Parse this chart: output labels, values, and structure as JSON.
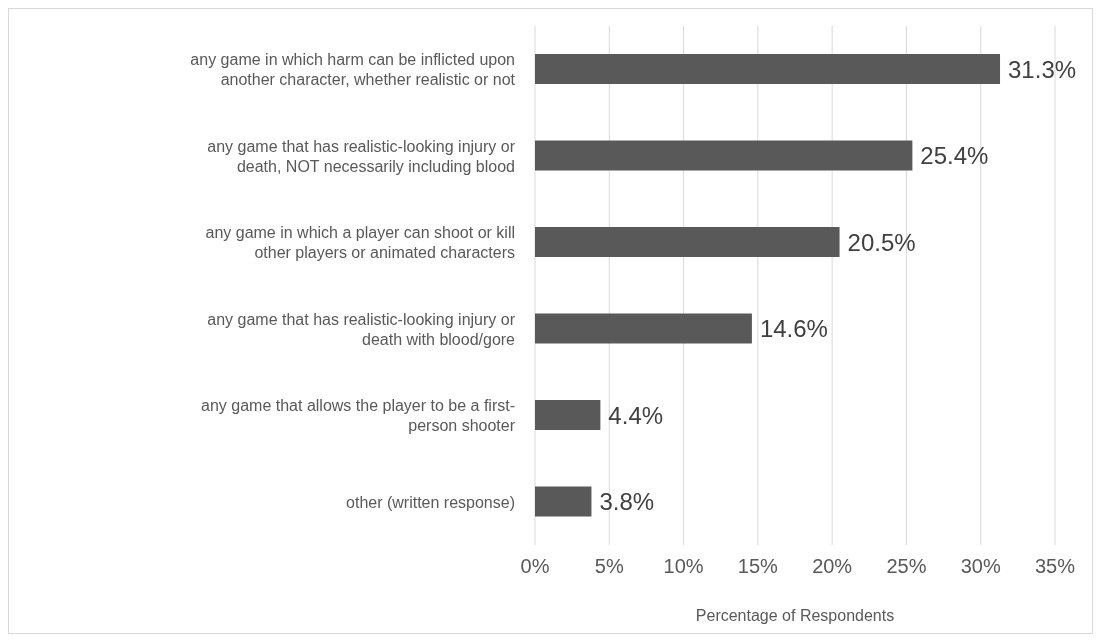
{
  "chart_data": {
    "type": "bar",
    "orientation": "horizontal",
    "xlabel": "Percentage of Respondents",
    "categories": [
      "any game in which harm can be inflicted upon another character, whether realistic or not",
      "any game that has realistic-looking injury or death, NOT necessarily including blood",
      "any game in which a player can shoot or kill other players or animated characters",
      "any game that has realistic-looking injury or death with blood/gore",
      "any game that allows the player to be a first-person shooter",
      "other (written response)"
    ],
    "values": [
      31.3,
      25.4,
      20.5,
      14.6,
      4.4,
      3.8
    ],
    "value_labels": [
      "31.3%",
      "25.4%",
      "20.5%",
      "14.6%",
      "4.4%",
      "3.8%"
    ],
    "color": "#595959",
    "xlim": [
      0,
      35
    ],
    "xticks": [
      {
        "value": 0,
        "label": "0%"
      },
      {
        "value": 5,
        "label": "5%"
      },
      {
        "value": 10,
        "label": "10%"
      },
      {
        "value": 15,
        "label": "15%"
      },
      {
        "value": 20,
        "label": "20%"
      },
      {
        "value": 25,
        "label": "25%"
      },
      {
        "value": 30,
        "label": "30%"
      },
      {
        "value": 35,
        "label": "35%"
      }
    ],
    "grid": "x",
    "legend": false
  }
}
